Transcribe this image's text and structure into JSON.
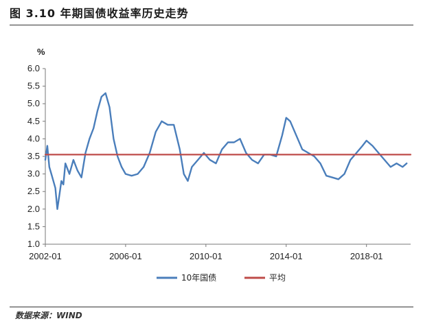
{
  "header": {
    "title": "图 3.10 年期国债收益率历史走势"
  },
  "footer": {
    "source": "数据来源：WIND"
  },
  "colors": {
    "series_primary": "#4a7ebb",
    "series_average": "#be4b48"
  },
  "chart_data": {
    "type": "line",
    "title": "",
    "ylabel": "%",
    "ylim": [
      1.0,
      6.0
    ],
    "y_ticks": [
      "1.0",
      "1.5",
      "2.0",
      "2.5",
      "3.0",
      "3.5",
      "4.0",
      "4.5",
      "5.0",
      "5.5",
      "6.0"
    ],
    "x_ticks": [
      "2002-01",
      "2006-01",
      "2010-01",
      "2014-01",
      "2018-01"
    ],
    "xlim": [
      2002.0,
      2020.2
    ],
    "legend_position": "bottom",
    "legend": [
      "10年国债",
      "平均"
    ],
    "series": [
      {
        "name": "10年国债",
        "x": [
          2002.0,
          2002.1,
          2002.2,
          2002.3,
          2002.4,
          2002.5,
          2002.6,
          2002.7,
          2002.8,
          2002.9,
          2003.0,
          2003.2,
          2003.4,
          2003.6,
          2003.8,
          2004.0,
          2004.2,
          2004.4,
          2004.6,
          2004.8,
          2005.0,
          2005.2,
          2005.4,
          2005.6,
          2005.8,
          2006.0,
          2006.3,
          2006.6,
          2006.9,
          2007.2,
          2007.5,
          2007.8,
          2008.1,
          2008.4,
          2008.7,
          2008.9,
          2009.1,
          2009.3,
          2009.6,
          2009.9,
          2010.2,
          2010.5,
          2010.8,
          2011.1,
          2011.4,
          2011.7,
          2012.0,
          2012.3,
          2012.6,
          2012.9,
          2013.2,
          2013.5,
          2013.8,
          2014.0,
          2014.2,
          2014.5,
          2014.8,
          2015.1,
          2015.4,
          2015.7,
          2016.0,
          2016.3,
          2016.6,
          2016.9,
          2017.2,
          2017.5,
          2017.8,
          2018.0,
          2018.3,
          2018.6,
          2018.9,
          2019.2,
          2019.5,
          2019.8,
          2020.0
        ],
        "values": [
          3.4,
          3.8,
          3.2,
          3.0,
          2.8,
          2.6,
          2.0,
          2.4,
          2.8,
          2.7,
          3.3,
          3.0,
          3.4,
          3.1,
          2.9,
          3.6,
          4.0,
          4.3,
          4.8,
          5.2,
          5.3,
          4.9,
          4.0,
          3.5,
          3.2,
          3.0,
          2.95,
          3.0,
          3.2,
          3.6,
          4.2,
          4.5,
          4.4,
          4.4,
          3.7,
          3.0,
          2.8,
          3.2,
          3.4,
          3.6,
          3.4,
          3.3,
          3.7,
          3.9,
          3.9,
          4.0,
          3.6,
          3.4,
          3.3,
          3.55,
          3.55,
          3.5,
          4.1,
          4.6,
          4.5,
          4.1,
          3.7,
          3.6,
          3.5,
          3.3,
          2.95,
          2.9,
          2.85,
          3.0,
          3.4,
          3.6,
          3.8,
          3.95,
          3.8,
          3.6,
          3.4,
          3.2,
          3.3,
          3.2,
          3.3
        ]
      },
      {
        "name": "平均",
        "x": [
          2002.0,
          2020.2
        ],
        "values": [
          3.55,
          3.55
        ]
      }
    ]
  }
}
